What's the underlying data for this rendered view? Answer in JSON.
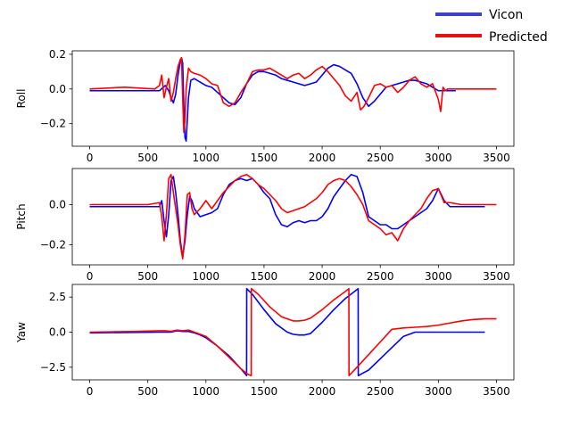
{
  "chart_data": {
    "type": "line",
    "legend": {
      "placement": "top-right",
      "entries": [
        {
          "name": "Vicon",
          "color": "#0000ff",
          "legend_color": "#4040d0"
        },
        {
          "name": "Predicted",
          "color": "#ff0000",
          "legend_color": "#e81010"
        }
      ]
    },
    "panels": [
      {
        "ylabel": "Roll",
        "xlim": [
          -150,
          3650
        ],
        "ylim": [
          -0.33,
          0.22
        ],
        "xticks": [
          0,
          500,
          1000,
          1500,
          2000,
          2500,
          3000,
          3500
        ],
        "xtick_labels": [
          "0",
          "500",
          "1000",
          "1500",
          "2000",
          "2500",
          "3000",
          "3500"
        ],
        "yticks": [
          0.2,
          0.0,
          -0.2
        ],
        "ytick_labels": [
          "0.2",
          "0.0",
          "−0.2"
        ],
        "series": [
          {
            "name": "Vicon",
            "color": "#0000ff",
            "x": [
              0,
              300,
              600,
              650,
              680,
              700,
              720,
              740,
              760,
              780,
              790,
              800,
              810,
              820,
              830,
              850,
              870,
              900,
              950,
              1000,
              1050,
              1100,
              1150,
              1200,
              1250,
              1300,
              1350,
              1400,
              1450,
              1500,
              1550,
              1600,
              1650,
              1700,
              1750,
              1800,
              1850,
              1900,
              1950,
              2000,
              2050,
              2100,
              2150,
              2200,
              2250,
              2300,
              2350,
              2400,
              2450,
              2500,
              2550,
              2600,
              2650,
              2700,
              2750,
              2800,
              2850,
              2900,
              2950,
              3000,
              3050,
              3100,
              3150
            ],
            "y": [
              -0.01,
              -0.01,
              -0.01,
              0.02,
              -0.01,
              -0.05,
              -0.08,
              -0.03,
              0.08,
              0.16,
              0.18,
              0.15,
              -0.1,
              -0.28,
              -0.3,
              -0.05,
              0.05,
              0.06,
              0.04,
              0.02,
              0.01,
              -0.02,
              -0.05,
              -0.08,
              -0.09,
              -0.05,
              0.03,
              0.08,
              0.1,
              0.1,
              0.09,
              0.08,
              0.06,
              0.05,
              0.04,
              0.03,
              0.02,
              0.03,
              0.04,
              0.08,
              0.12,
              0.14,
              0.13,
              0.11,
              0.09,
              0.03,
              -0.05,
              -0.1,
              -0.07,
              -0.03,
              0.01,
              0.02,
              0.03,
              0.04,
              0.05,
              0.05,
              0.04,
              0.03,
              0.01,
              -0.01,
              -0.01,
              -0.01,
              -0.01
            ]
          },
          {
            "name": "Predicted",
            "color": "#ff0000",
            "x": [
              0,
              300,
              560,
              600,
              620,
              640,
              660,
              680,
              700,
              720,
              740,
              760,
              780,
              790,
              800,
              810,
              820,
              830,
              850,
              870,
              900,
              950,
              1000,
              1050,
              1100,
              1150,
              1200,
              1250,
              1300,
              1350,
              1400,
              1450,
              1500,
              1550,
              1600,
              1650,
              1700,
              1750,
              1800,
              1850,
              1900,
              1950,
              2000,
              2050,
              2100,
              2150,
              2200,
              2250,
              2300,
              2330,
              2360,
              2400,
              2450,
              2500,
              2550,
              2600,
              2650,
              2700,
              2750,
              2800,
              2850,
              2900,
              2950,
              3000,
              3020,
              3040,
              3060,
              3080,
              3100,
              3200,
              3500
            ],
            "y": [
              0.0,
              0.01,
              0.0,
              0.02,
              0.08,
              -0.05,
              0.01,
              0.06,
              -0.07,
              -0.02,
              0.06,
              0.13,
              0.17,
              0.18,
              -0.05,
              -0.25,
              -0.18,
              0.0,
              0.12,
              0.1,
              0.09,
              0.08,
              0.06,
              0.03,
              0.02,
              -0.08,
              -0.1,
              -0.08,
              -0.02,
              0.03,
              0.1,
              0.11,
              0.11,
              0.12,
              0.1,
              0.08,
              0.06,
              0.08,
              0.09,
              0.06,
              0.08,
              0.11,
              0.13,
              0.1,
              0.06,
              0.02,
              -0.04,
              -0.07,
              -0.02,
              -0.12,
              -0.1,
              -0.05,
              0.02,
              0.03,
              0.01,
              0.02,
              -0.02,
              0.01,
              0.05,
              0.07,
              0.03,
              0.01,
              0.03,
              -0.06,
              -0.13,
              0.01,
              -0.01,
              0.0,
              0.0,
              0.0,
              0.0
            ]
          }
        ]
      },
      {
        "ylabel": "Pitch",
        "xlim": [
          -150,
          3650
        ],
        "ylim": [
          -0.3,
          0.18
        ],
        "xticks": [
          0,
          500,
          1000,
          1500,
          2000,
          2500,
          3000,
          3500
        ],
        "xtick_labels": [
          "0",
          "500",
          "1000",
          "1500",
          "2000",
          "2500",
          "3000",
          "3500"
        ],
        "yticks": [
          0.0,
          -0.2
        ],
        "ytick_labels": [
          "0.0",
          "−0.2"
        ],
        "series": [
          {
            "name": "Vicon",
            "color": "#0000ff",
            "x": [
              0,
              500,
              600,
              620,
              640,
              660,
              680,
              700,
              720,
              740,
              760,
              780,
              800,
              820,
              840,
              860,
              880,
              900,
              950,
              1000,
              1050,
              1100,
              1150,
              1200,
              1250,
              1300,
              1350,
              1400,
              1450,
              1500,
              1550,
              1600,
              1650,
              1700,
              1750,
              1800,
              1850,
              1900,
              1950,
              2000,
              2050,
              2100,
              2150,
              2200,
              2250,
              2300,
              2350,
              2400,
              2450,
              2500,
              2550,
              2600,
              2650,
              2700,
              2750,
              2800,
              2850,
              2900,
              2950,
              3000,
              3050,
              3100,
              3400
            ],
            "y": [
              -0.01,
              -0.01,
              -0.01,
              0.02,
              -0.08,
              -0.16,
              -0.05,
              0.12,
              0.14,
              0.06,
              -0.05,
              -0.18,
              -0.26,
              -0.18,
              -0.05,
              0.04,
              0.02,
              -0.02,
              -0.06,
              -0.05,
              -0.04,
              -0.02,
              0.05,
              0.1,
              0.12,
              0.13,
              0.12,
              0.13,
              0.1,
              0.06,
              0.03,
              -0.05,
              -0.1,
              -0.11,
              -0.09,
              -0.08,
              -0.09,
              -0.08,
              -0.08,
              -0.06,
              -0.02,
              0.04,
              0.08,
              0.12,
              0.15,
              0.14,
              0.06,
              -0.06,
              -0.08,
              -0.1,
              -0.1,
              -0.12,
              -0.12,
              -0.1,
              -0.08,
              -0.06,
              -0.04,
              -0.02,
              0.02,
              0.08,
              0.02,
              -0.01,
              -0.01
            ]
          },
          {
            "name": "Predicted",
            "color": "#ff0000",
            "x": [
              0,
              500,
              600,
              620,
              640,
              660,
              680,
              700,
              720,
              740,
              760,
              780,
              800,
              820,
              840,
              860,
              880,
              900,
              950,
              1000,
              1050,
              1100,
              1150,
              1200,
              1250,
              1300,
              1350,
              1400,
              1450,
              1500,
              1550,
              1600,
              1650,
              1700,
              1750,
              1800,
              1850,
              1900,
              1950,
              2000,
              2050,
              2100,
              2150,
              2200,
              2250,
              2300,
              2350,
              2400,
              2450,
              2500,
              2550,
              2600,
              2650,
              2700,
              2750,
              2800,
              2850,
              2900,
              2950,
              3000,
              3050,
              3100,
              3200,
              3500
            ],
            "y": [
              0.0,
              0.0,
              0.01,
              -0.06,
              -0.18,
              -0.05,
              0.13,
              0.15,
              0.06,
              -0.02,
              -0.1,
              -0.2,
              -0.27,
              -0.15,
              0.05,
              0.06,
              -0.02,
              -0.05,
              -0.02,
              0.02,
              -0.02,
              0.02,
              0.06,
              0.09,
              0.12,
              0.14,
              0.15,
              0.13,
              0.1,
              0.08,
              0.05,
              0.02,
              -0.02,
              -0.04,
              -0.03,
              -0.02,
              -0.01,
              0.01,
              0.03,
              0.06,
              0.1,
              0.12,
              0.13,
              0.12,
              0.09,
              0.05,
              0.0,
              -0.08,
              -0.1,
              -0.12,
              -0.15,
              -0.14,
              -0.18,
              -0.12,
              -0.08,
              -0.05,
              -0.02,
              0.03,
              0.07,
              0.08,
              0.01,
              0.01,
              0.0,
              0.0
            ]
          }
        ]
      },
      {
        "ylabel": "Yaw",
        "xlim": [
          -150,
          3650
        ],
        "ylim": [
          -3.4,
          3.4
        ],
        "xticks": [
          0,
          500,
          1000,
          1500,
          2000,
          2500,
          3000,
          3500
        ],
        "xtick_labels": [
          "0",
          "500",
          "1000",
          "1500",
          "2000",
          "2500",
          "3000",
          "3500"
        ],
        "yticks": [
          2.5,
          0.0,
          -2.5
        ],
        "ytick_labels": [
          "2.5",
          "0.0",
          "−2.5"
        ],
        "series": [
          {
            "name": "Vicon",
            "color": "#0000ff",
            "x": [
              0,
              600,
              700,
              750,
              800,
              850,
              900,
              950,
              1000,
              1100,
              1200,
              1300,
              1350,
              1351,
              1400,
              1500,
              1600,
              1700,
              1750,
              1800,
              1850,
              1900,
              2000,
              2100,
              2200,
              2310,
              2311,
              2400,
              2500,
              2600,
              2700,
              2800,
              2900,
              3000,
              3100,
              3400
            ],
            "y": [
              -0.05,
              0.0,
              0.0,
              0.1,
              0.05,
              0.05,
              -0.05,
              -0.2,
              -0.4,
              -1.0,
              -1.7,
              -2.6,
              -3.1,
              3.1,
              2.7,
              1.6,
              0.6,
              0.0,
              -0.15,
              -0.2,
              -0.2,
              -0.1,
              0.7,
              1.6,
              2.4,
              3.1,
              -3.1,
              -2.7,
              -1.9,
              -1.1,
              -0.3,
              0.0,
              0.0,
              0.0,
              0.0,
              0.0
            ]
          },
          {
            "name": "Predicted",
            "color": "#ff0000",
            "x": [
              0,
              400,
              600,
              650,
              700,
              750,
              800,
              850,
              900,
              1000,
              1100,
              1200,
              1300,
              1360,
              1390,
              1391,
              1450,
              1550,
              1650,
              1750,
              1800,
              1850,
              1900,
              2000,
              2100,
              2200,
              2230,
              2231,
              2300,
              2400,
              2500,
              2600,
              2700,
              2800,
              2900,
              3000,
              3100,
              3200,
              3300,
              3400,
              3500
            ],
            "y": [
              0.0,
              0.05,
              0.1,
              0.1,
              0.05,
              0.15,
              0.1,
              0.15,
              0.0,
              -0.3,
              -1.0,
              -1.8,
              -2.6,
              -3.0,
              -3.1,
              3.1,
              2.7,
              1.8,
              1.1,
              0.8,
              0.8,
              0.85,
              1.0,
              1.6,
              2.3,
              2.9,
              3.1,
              -3.1,
              -2.5,
              -1.6,
              -0.7,
              0.2,
              0.3,
              0.35,
              0.4,
              0.5,
              0.65,
              0.8,
              0.9,
              0.95,
              0.95
            ]
          }
        ]
      }
    ]
  }
}
